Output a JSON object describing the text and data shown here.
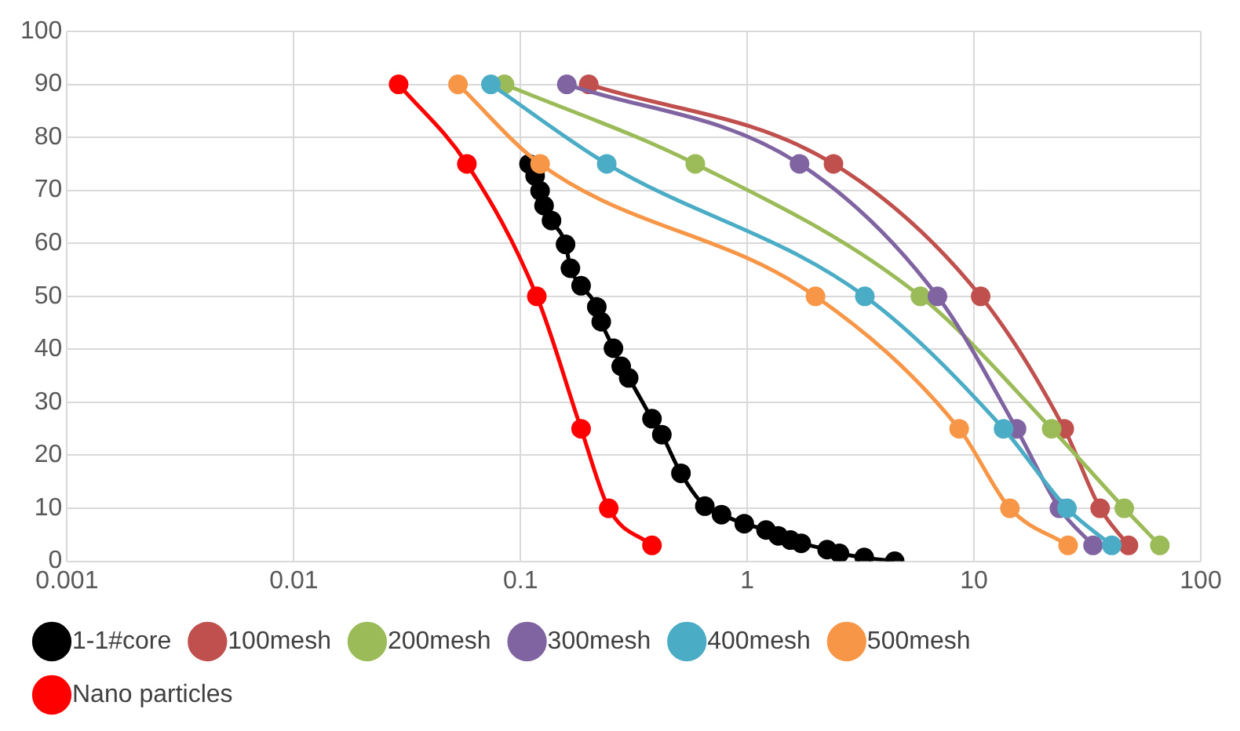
{
  "chart_data": {
    "type": "line",
    "log": "x",
    "grid": true,
    "legend": "bottom",
    "marker": "circle",
    "line_style": "solid",
    "xlim": [
      0.001,
      100
    ],
    "xticks": [
      0.001,
      0.01,
      0.1,
      1,
      10,
      100
    ],
    "ylim": [
      0,
      100
    ],
    "yticks": [
      0,
      10,
      20,
      30,
      40,
      50,
      60,
      70,
      80,
      90,
      100
    ],
    "series": [
      {
        "name": "1-1#core",
        "color": "#000000",
        "x": [
          0.109,
          0.116,
          0.122,
          0.127,
          0.137,
          0.158,
          0.166,
          0.185,
          0.217,
          0.227,
          0.257,
          0.278,
          0.3,
          0.38,
          0.42,
          0.51,
          0.65,
          0.77,
          0.97,
          1.21,
          1.37,
          1.55,
          1.73,
          2.25,
          2.55,
          3.28,
          4.47
        ],
        "values": [
          75,
          72.7,
          69.9,
          67.1,
          64.3,
          59.8,
          55.3,
          52,
          48,
          45.2,
          40.2,
          36.8,
          34.6,
          26.9,
          23.9,
          16.6,
          10.4,
          8.8,
          7.1,
          5.9,
          4.8,
          4,
          3.4,
          2.2,
          1.5,
          0.7,
          0
        ]
      },
      {
        "name": "100mesh",
        "color": "#c0504d",
        "x": [
          0.2,
          2.4,
          10.7,
          25,
          36,
          48
        ],
        "values": [
          90,
          75,
          50,
          25,
          10,
          3
        ]
      },
      {
        "name": "200mesh",
        "color": "#9bbb59",
        "x": [
          0.085,
          0.59,
          5.8,
          22,
          46,
          66
        ],
        "values": [
          90,
          75,
          50,
          25,
          10,
          3
        ]
      },
      {
        "name": "300mesh",
        "color": "#8064a2",
        "x": [
          0.16,
          1.7,
          6.9,
          15.4,
          23.8,
          33.5
        ],
        "values": [
          90,
          75,
          50,
          25,
          10,
          3
        ]
      },
      {
        "name": "400mesh",
        "color": "#4bacc6",
        "x": [
          0.074,
          0.24,
          3.3,
          13.5,
          25.7,
          40.5
        ],
        "values": [
          90,
          75,
          50,
          25,
          10,
          3
        ]
      },
      {
        "name": "500mesh",
        "color": "#f79646",
        "x": [
          0.053,
          0.122,
          2,
          8.6,
          14.4,
          26
        ],
        "values": [
          90,
          75,
          50,
          25,
          10,
          3
        ]
      },
      {
        "name": "Nano particles",
        "color": "#ff0000",
        "x": [
          0.029,
          0.058,
          0.118,
          0.185,
          0.245,
          0.38
        ],
        "values": [
          90,
          75,
          50,
          25,
          10,
          3
        ]
      }
    ]
  }
}
